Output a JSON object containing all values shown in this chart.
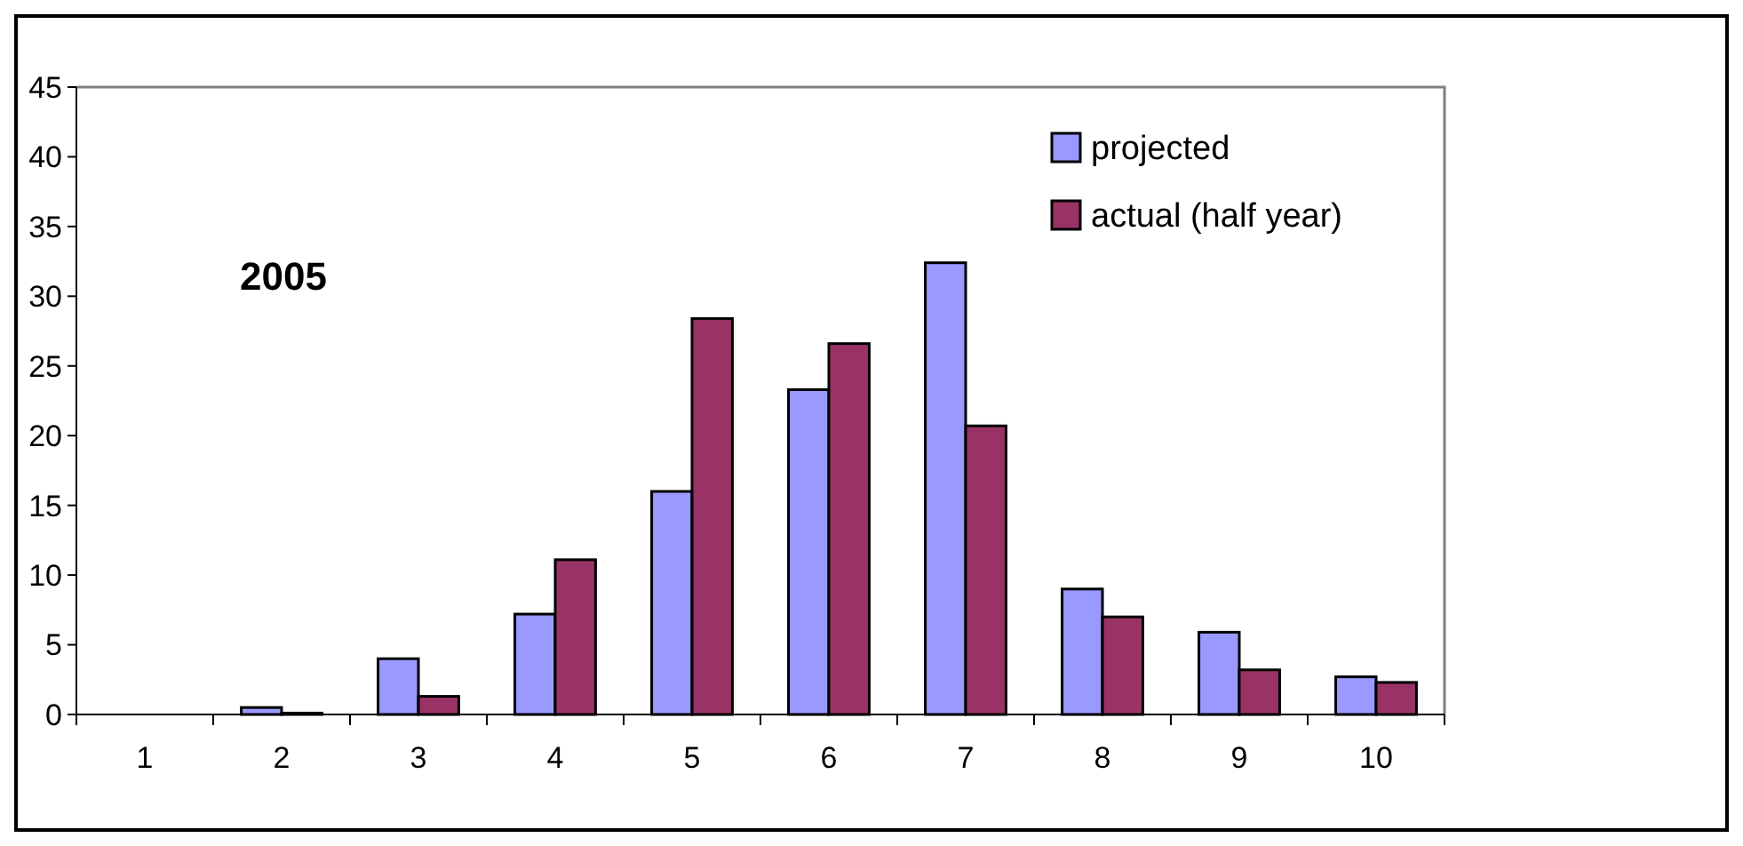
{
  "chart_data": {
    "type": "bar",
    "categories": [
      "1",
      "2",
      "3",
      "4",
      "5",
      "6",
      "7",
      "8",
      "9",
      "10"
    ],
    "series": [
      {
        "name": "projected",
        "color": "#9999ff",
        "values": [
          0,
          0.5,
          4.0,
          7.2,
          16.0,
          23.3,
          32.4,
          9.0,
          5.9,
          2.7
        ]
      },
      {
        "name": "actual (half year)",
        "color": "#993366",
        "values": [
          0,
          0.1,
          1.3,
          11.1,
          28.4,
          26.6,
          20.7,
          7.0,
          3.2,
          2.3
        ]
      }
    ],
    "ylim": [
      0,
      45
    ],
    "yticks": [
      0,
      5,
      10,
      15,
      20,
      25,
      30,
      35,
      40,
      45
    ],
    "grid": false,
    "legend": "top right",
    "annotations": [
      "2005"
    ]
  }
}
